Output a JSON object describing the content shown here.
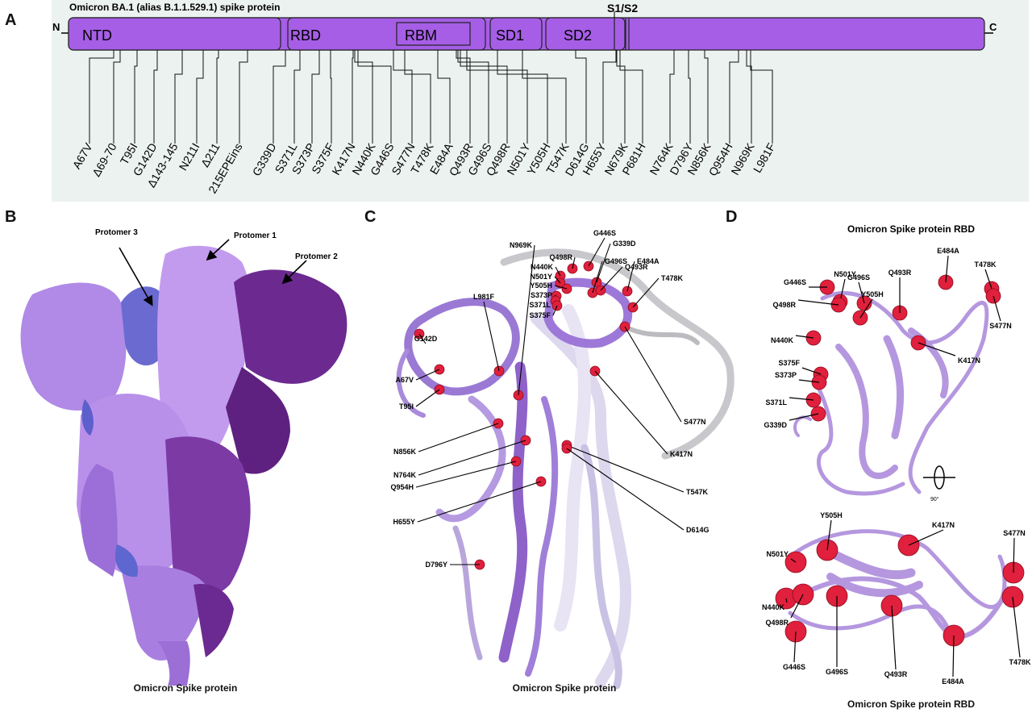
{
  "panel_letters": {
    "a": "A",
    "b": "B",
    "c": "C",
    "d": "D"
  },
  "panel_a": {
    "title": "Omicron BA.1 (alias B.1.1.529.1) spike protein",
    "n_term": "N",
    "c_term": "C",
    "s1s2": "S1/S2",
    "domains": [
      "NTD",
      "RBD",
      "RBM",
      "SD1",
      "SD2"
    ],
    "mutations": [
      "A67V",
      "Δ69-70",
      "T95I",
      "G142D",
      "Δ143-145",
      "N211I",
      "Δ211",
      "215EPEins",
      "G339D",
      "S371L",
      "S373P",
      "S375F",
      "K417N",
      "N440K",
      "G446S",
      "S477N",
      "T478K",
      "E484A",
      "Q493R",
      "G496S",
      "Q498R",
      "N501Y",
      "Y505H",
      "T547K",
      "D614G",
      "H655Y",
      "N679K",
      "P681H",
      "N764K",
      "D796Y",
      "N856K",
      "Q954H",
      "N969K",
      "L981F"
    ]
  },
  "panel_b": {
    "caption": "Omicron Spike protein",
    "labels": [
      "Protomer 3",
      "Protomer 1",
      "Protomer 2"
    ]
  },
  "panel_c": {
    "caption": "Omicron Spike protein",
    "labels": [
      "N969K",
      "Q498R",
      "G446S",
      "N440K",
      "G339D",
      "N501Y",
      "G496S",
      "Y505H",
      "Q493R",
      "E484A",
      "S373P",
      "S371L",
      "T478K",
      "S375F",
      "G142D",
      "L981F",
      "A67V",
      "T95I",
      "S477N",
      "N856K",
      "K417N",
      "N764K",
      "Q954H",
      "T547K",
      "H655Y",
      "D614G",
      "D796Y"
    ]
  },
  "panel_d": {
    "caption": "Omicron Spike protein RBD",
    "title": "Omicron Spike protein RBD",
    "rotation": "90°",
    "top_labels": [
      "G446S",
      "N501Y",
      "G496S",
      "Q493R",
      "E484A",
      "T478K",
      "Y505H",
      "Q498R",
      "S477N",
      "N440K",
      "K417N",
      "S375F",
      "S373P",
      "S371L",
      "G339D"
    ],
    "bottom_labels": [
      "Y505H",
      "K417N",
      "S477N",
      "N501Y",
      "N440K",
      "Q498R",
      "G496S",
      "Q493R",
      "G446S",
      "E484A",
      "T478K"
    ]
  },
  "colors": {
    "domain": "#a65ee6",
    "panel_bg": "#ecf2f0",
    "residue": "#e0203c"
  }
}
